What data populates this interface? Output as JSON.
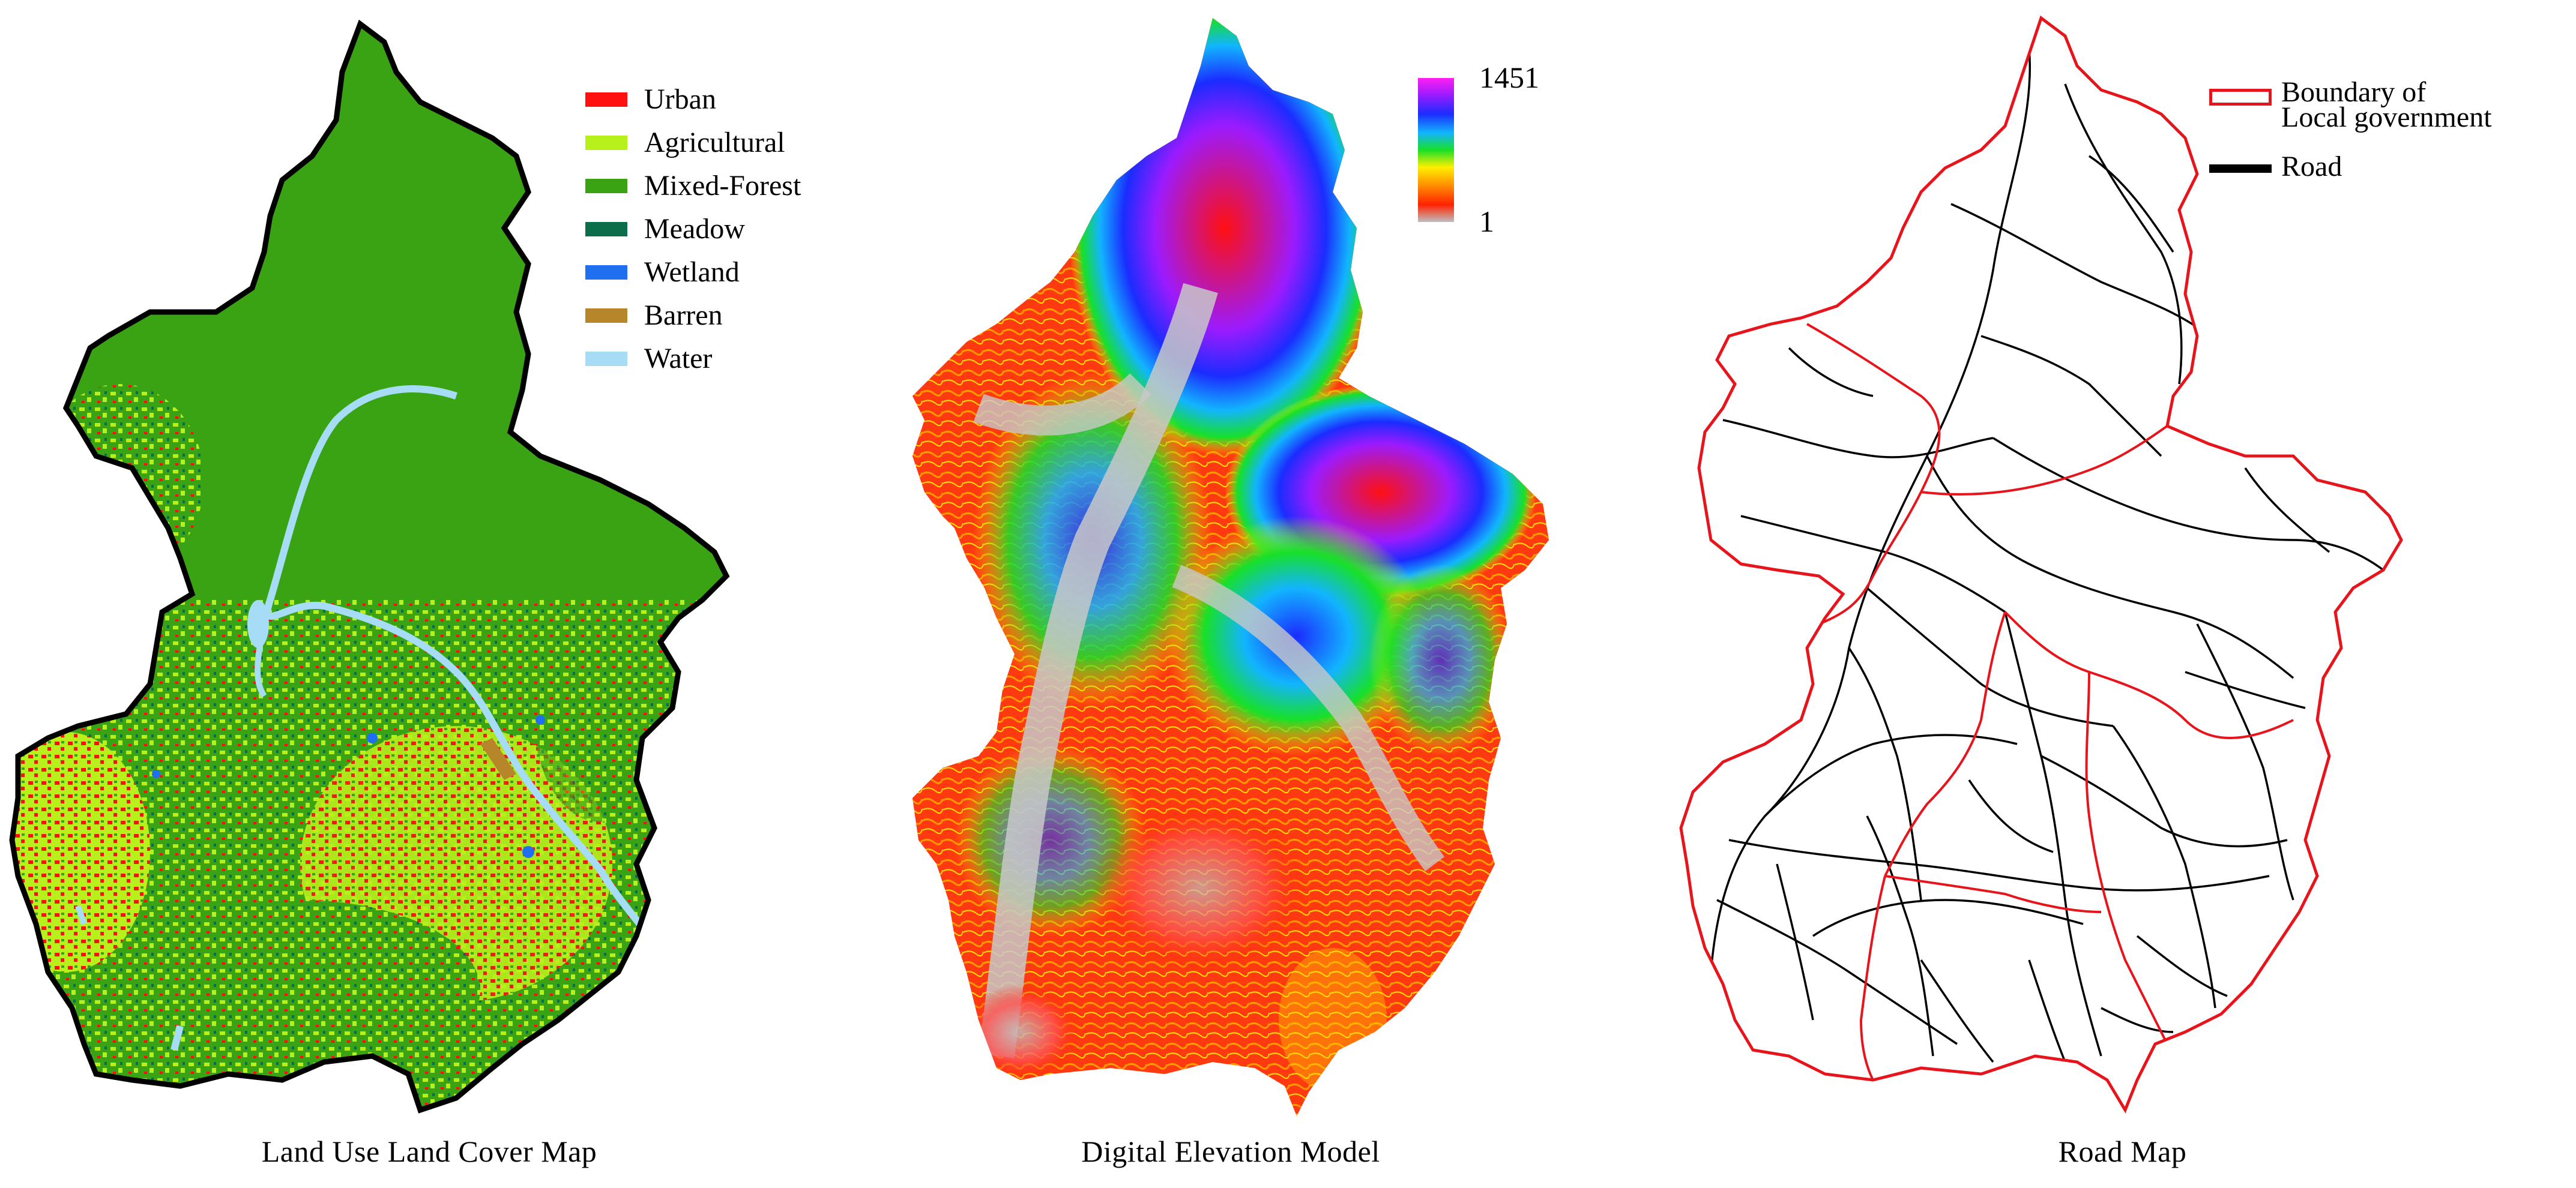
{
  "panels": {
    "lulc": {
      "caption": "Land Use Land Cover Map",
      "legend": [
        {
          "label": "Urban",
          "color": "#ff1010"
        },
        {
          "label": "Agricultural",
          "color": "#b8f01c"
        },
        {
          "label": "Mixed-Forest",
          "color": "#3aa314"
        },
        {
          "label": "Meadow",
          "color": "#0a6e4a"
        },
        {
          "label": "Wetland",
          "color": "#1f6ff0"
        },
        {
          "label": "Barren",
          "color": "#b8862a"
        },
        {
          "label": "Water",
          "color": "#a6dcf5"
        }
      ]
    },
    "dem": {
      "caption": "Digital Elevation Model",
      "colorbar": {
        "max": "1451",
        "min": "1"
      }
    },
    "road": {
      "caption": "Road Map",
      "legend": {
        "boundary_label_line1": "Boundary of",
        "boundary_label_line2": "Local government",
        "road_label": "Road",
        "boundary_color": "#e8141b",
        "road_color": "#000000"
      }
    }
  }
}
